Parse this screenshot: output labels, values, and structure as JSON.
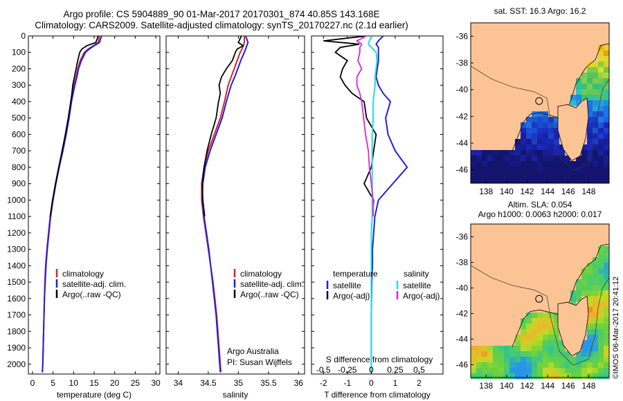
{
  "header": {
    "title_line1": "Argo profile: CS 5904889_90 01-Mar-2017 20170301_874 40.85S 143.168E",
    "title_line2": "Climatology: CARS2009. Satellite-adjusted climatology: synTS_20170227.nc (2.1d earlier)"
  },
  "footer": {
    "timestamp": "©IMOS 06-Mar-2017 20:41:12"
  },
  "colors": {
    "climatology": "#dd2222",
    "satellite": "#1f1fdd",
    "argo": "#000000",
    "sal_satellite": "#22dddd",
    "sal_argo": "#dd22dd",
    "sea_warm": "#dd3311",
    "land": "#fcc494"
  },
  "chart_data": [
    {
      "type": "line",
      "id": "temperature_profile",
      "xlabel": "temperature (deg C)",
      "ylabel": "",
      "xlim": [
        -1,
        31
      ],
      "ylim": [
        2060,
        0
      ],
      "xticks": [
        0,
        5,
        10,
        15,
        20,
        25,
        30
      ],
      "yticks": [
        0,
        100,
        200,
        300,
        400,
        500,
        600,
        700,
        800,
        900,
        1000,
        1100,
        1200,
        1300,
        1400,
        1500,
        1600,
        1700,
        1800,
        1900,
        2000
      ],
      "depth": [
        0,
        40,
        60,
        80,
        100,
        150,
        200,
        250,
        300,
        350,
        400,
        500,
        600,
        700,
        800,
        900,
        1000,
        1100,
        1200,
        1300,
        1400,
        1500,
        1600,
        1700,
        1800,
        1900,
        2000,
        2050
      ],
      "series": [
        {
          "name": "climatology",
          "color": "#dd2222",
          "values": [
            16.3,
            16.0,
            14.8,
            13.5,
            12.6,
            11.6,
            11.0,
            10.6,
            10.1,
            9.7,
            9.4,
            8.8,
            8.1,
            7.3,
            6.4,
            5.6,
            4.9,
            4.3,
            3.9,
            3.5,
            3.2,
            3.0,
            2.9,
            2.8,
            2.7,
            2.6,
            2.5,
            2.4
          ]
        },
        {
          "name": "satellite-adj. clim.",
          "color": "#1f1fdd",
          "values": [
            16.8,
            16.3,
            15.0,
            13.8,
            12.9,
            11.9,
            11.2,
            10.8,
            10.3,
            9.9,
            9.5,
            8.9,
            8.2,
            7.4,
            6.5,
            5.7,
            5.0,
            4.4,
            4.0,
            3.6,
            3.3,
            3.1,
            2.9,
            2.8,
            2.7,
            2.6,
            2.5,
            2.4
          ]
        },
        {
          "name": "Argo(..raw -QC)",
          "color": "#000000",
          "values": [
            16.0,
            15.4,
            13.2,
            12.0,
            11.5,
            11.0,
            10.6,
            10.2,
            9.8,
            9.6,
            9.3,
            8.7,
            8.0,
            7.2,
            6.4,
            5.6,
            4.9,
            4.3
          ]
        }
      ],
      "legend": {
        "placement": "lower-middle",
        "entries": [
          "climatology",
          "satellite-adj. clim.",
          "Argo(..raw -QC)"
        ]
      }
    },
    {
      "type": "line",
      "id": "salinity_profile",
      "xlabel": "salinity",
      "ylabel": "",
      "xlim": [
        33.8,
        36.1
      ],
      "ylim": [
        2060,
        0
      ],
      "xticks": [
        34,
        34.5,
        35,
        35.5,
        36
      ],
      "depth": [
        0,
        40,
        60,
        80,
        100,
        150,
        200,
        250,
        300,
        350,
        400,
        500,
        600,
        700,
        800,
        900,
        1000,
        1100,
        1200,
        1300,
        1400,
        1500,
        1600,
        1700,
        1800,
        1900,
        2000,
        2050
      ],
      "series": [
        {
          "name": "climatology",
          "color": "#dd2222",
          "values": [
            35.1,
            35.1,
            35.08,
            35.06,
            35.03,
            34.98,
            34.93,
            34.88,
            34.83,
            34.8,
            34.77,
            34.7,
            34.6,
            34.5,
            34.43,
            34.39,
            34.39,
            34.42,
            34.46,
            34.5,
            34.54,
            34.58,
            34.61,
            34.64,
            34.66,
            34.68,
            34.7,
            34.71
          ]
        },
        {
          "name": "satellite-adj. clim.",
          "color": "#1f1fdd",
          "values": [
            35.12,
            35.16,
            35.14,
            35.12,
            35.1,
            35.04,
            34.99,
            34.94,
            34.88,
            34.84,
            34.8,
            34.73,
            34.63,
            34.53,
            34.45,
            34.41,
            34.4,
            34.43,
            34.47,
            34.51,
            34.54,
            34.57,
            34.6,
            34.63,
            34.65,
            34.67,
            34.69,
            34.7
          ]
        },
        {
          "name": "Argo(..raw -QC)",
          "color": "#000000",
          "values": [
            35.05,
            35.0,
            35.08,
            34.98,
            34.95,
            34.9,
            34.8,
            34.72,
            34.68,
            34.7,
            34.67,
            34.63,
            34.55,
            34.48,
            34.43,
            34.4,
            34.41,
            34.44
          ]
        }
      ],
      "legend": {
        "placement": "lower-middle",
        "entries": [
          "climatology",
          "satellite-adj. clim.",
          "Argo(..raw -QC)"
        ]
      },
      "annotations": [
        "Argo Australia",
        "PI: Susan Wijffels"
      ]
    },
    {
      "type": "line",
      "id": "difference_profile",
      "xlabel": "T difference from climatology",
      "xlabel_top": "S difference from climatology",
      "xlim": [
        -2.5,
        3
      ],
      "ylim": [
        2060,
        0
      ],
      "xticks": [
        -2,
        -1,
        0,
        1,
        2
      ],
      "xticklabels": [
        "-2",
        "-1",
        "0",
        "1",
        "2"
      ],
      "sticks": [
        -0.5,
        -0.25,
        0,
        0.25,
        0.5
      ],
      "sticklabels": [
        "-0.5",
        "-0.25",
        "0",
        "0.25",
        "0.5"
      ],
      "depth": [
        0,
        30,
        50,
        70,
        100,
        150,
        200,
        250,
        300,
        350,
        400,
        500,
        600,
        700,
        800,
        900,
        1000,
        1100,
        1200,
        1300,
        1400,
        1500,
        1600,
        1700,
        1800,
        1900,
        2000,
        2050
      ],
      "series": [
        {
          "name": "satellite",
          "group": "temperature",
          "color": "#1f1fdd",
          "values": [
            0.5,
            0.3,
            0.2,
            0.3,
            0.3,
            0.3,
            0.25,
            0.2,
            0.3,
            0.5,
            0.8,
            0.6,
            0.7,
            1.0,
            1.5,
            0.9,
            0.3,
            0.15,
            0.1,
            0.05,
            0.05,
            0.02,
            0.01,
            0.0,
            0.0,
            0.0,
            0.0,
            0.0
          ]
        },
        {
          "name": "Argo(-adj)",
          "group": "temperature",
          "color": "#000000",
          "values": [
            -0.2,
            -2.0,
            -0.5,
            -1.3,
            -1.5,
            -1.0,
            -1.2,
            -1.3,
            -1.1,
            -0.8,
            -0.3,
            -0.2,
            0.2,
            0.1,
            0.0,
            -0.3,
            0.1,
            0.05
          ]
        },
        {
          "name": "satellite",
          "group": "salinity",
          "color": "#22dddd",
          "values": [
            0.01,
            -0.02,
            -0.03,
            0.0,
            0.05,
            0.06,
            0.05,
            0.04,
            0.04,
            0.03,
            0.02,
            0.02,
            0.01,
            0.01,
            0.01,
            0.01,
            0.01,
            0.01,
            0.0,
            0.0,
            0.0,
            0.0,
            0.0,
            0.0,
            0.0,
            0.0,
            0.0,
            0.0
          ]
        },
        {
          "name": "Argo(-adj)",
          "group": "salinity",
          "color": "#dd22dd",
          "values": [
            -0.05,
            -0.15,
            -0.1,
            -0.12,
            -0.12,
            -0.14,
            -0.1,
            -0.15,
            -0.15,
            -0.12,
            -0.1,
            -0.08,
            -0.06,
            -0.03,
            -0.02,
            0.0,
            0.02,
            0.02
          ]
        }
      ],
      "legend": {
        "placement": "lower-middle",
        "temperature_title": "temperature",
        "salinity_title": "salinity",
        "entries": [
          "satellite",
          "Argo(-adj)",
          "satellite",
          "Argo(-adj)"
        ]
      }
    },
    {
      "type": "heatmap",
      "id": "sst_map",
      "title": "sat. SST: 16.3 Argo: 16.2",
      "xlim": [
        136.5,
        150
      ],
      "ylim": [
        -47,
        -35
      ],
      "xticks": [
        138,
        140,
        142,
        144,
        146,
        148
      ],
      "yticks": [
        -36,
        -38,
        -40,
        -42,
        -44,
        -46
      ],
      "float_position": {
        "lon": 143.168,
        "lat": -40.85
      }
    },
    {
      "type": "heatmap",
      "id": "sla_map",
      "title_line1": "Altim. SLA: 0.054",
      "title_line2": "Argo h1000: 0.0063 h2000: 0.017",
      "xlim": [
        136.5,
        150
      ],
      "ylim": [
        -47,
        -35
      ],
      "xticks": [
        138,
        140,
        142,
        144,
        146,
        148
      ],
      "yticks": [
        -36,
        -38,
        -40,
        -42,
        -44,
        -46
      ],
      "float_position": {
        "lon": 143.168,
        "lat": -40.85
      }
    }
  ]
}
